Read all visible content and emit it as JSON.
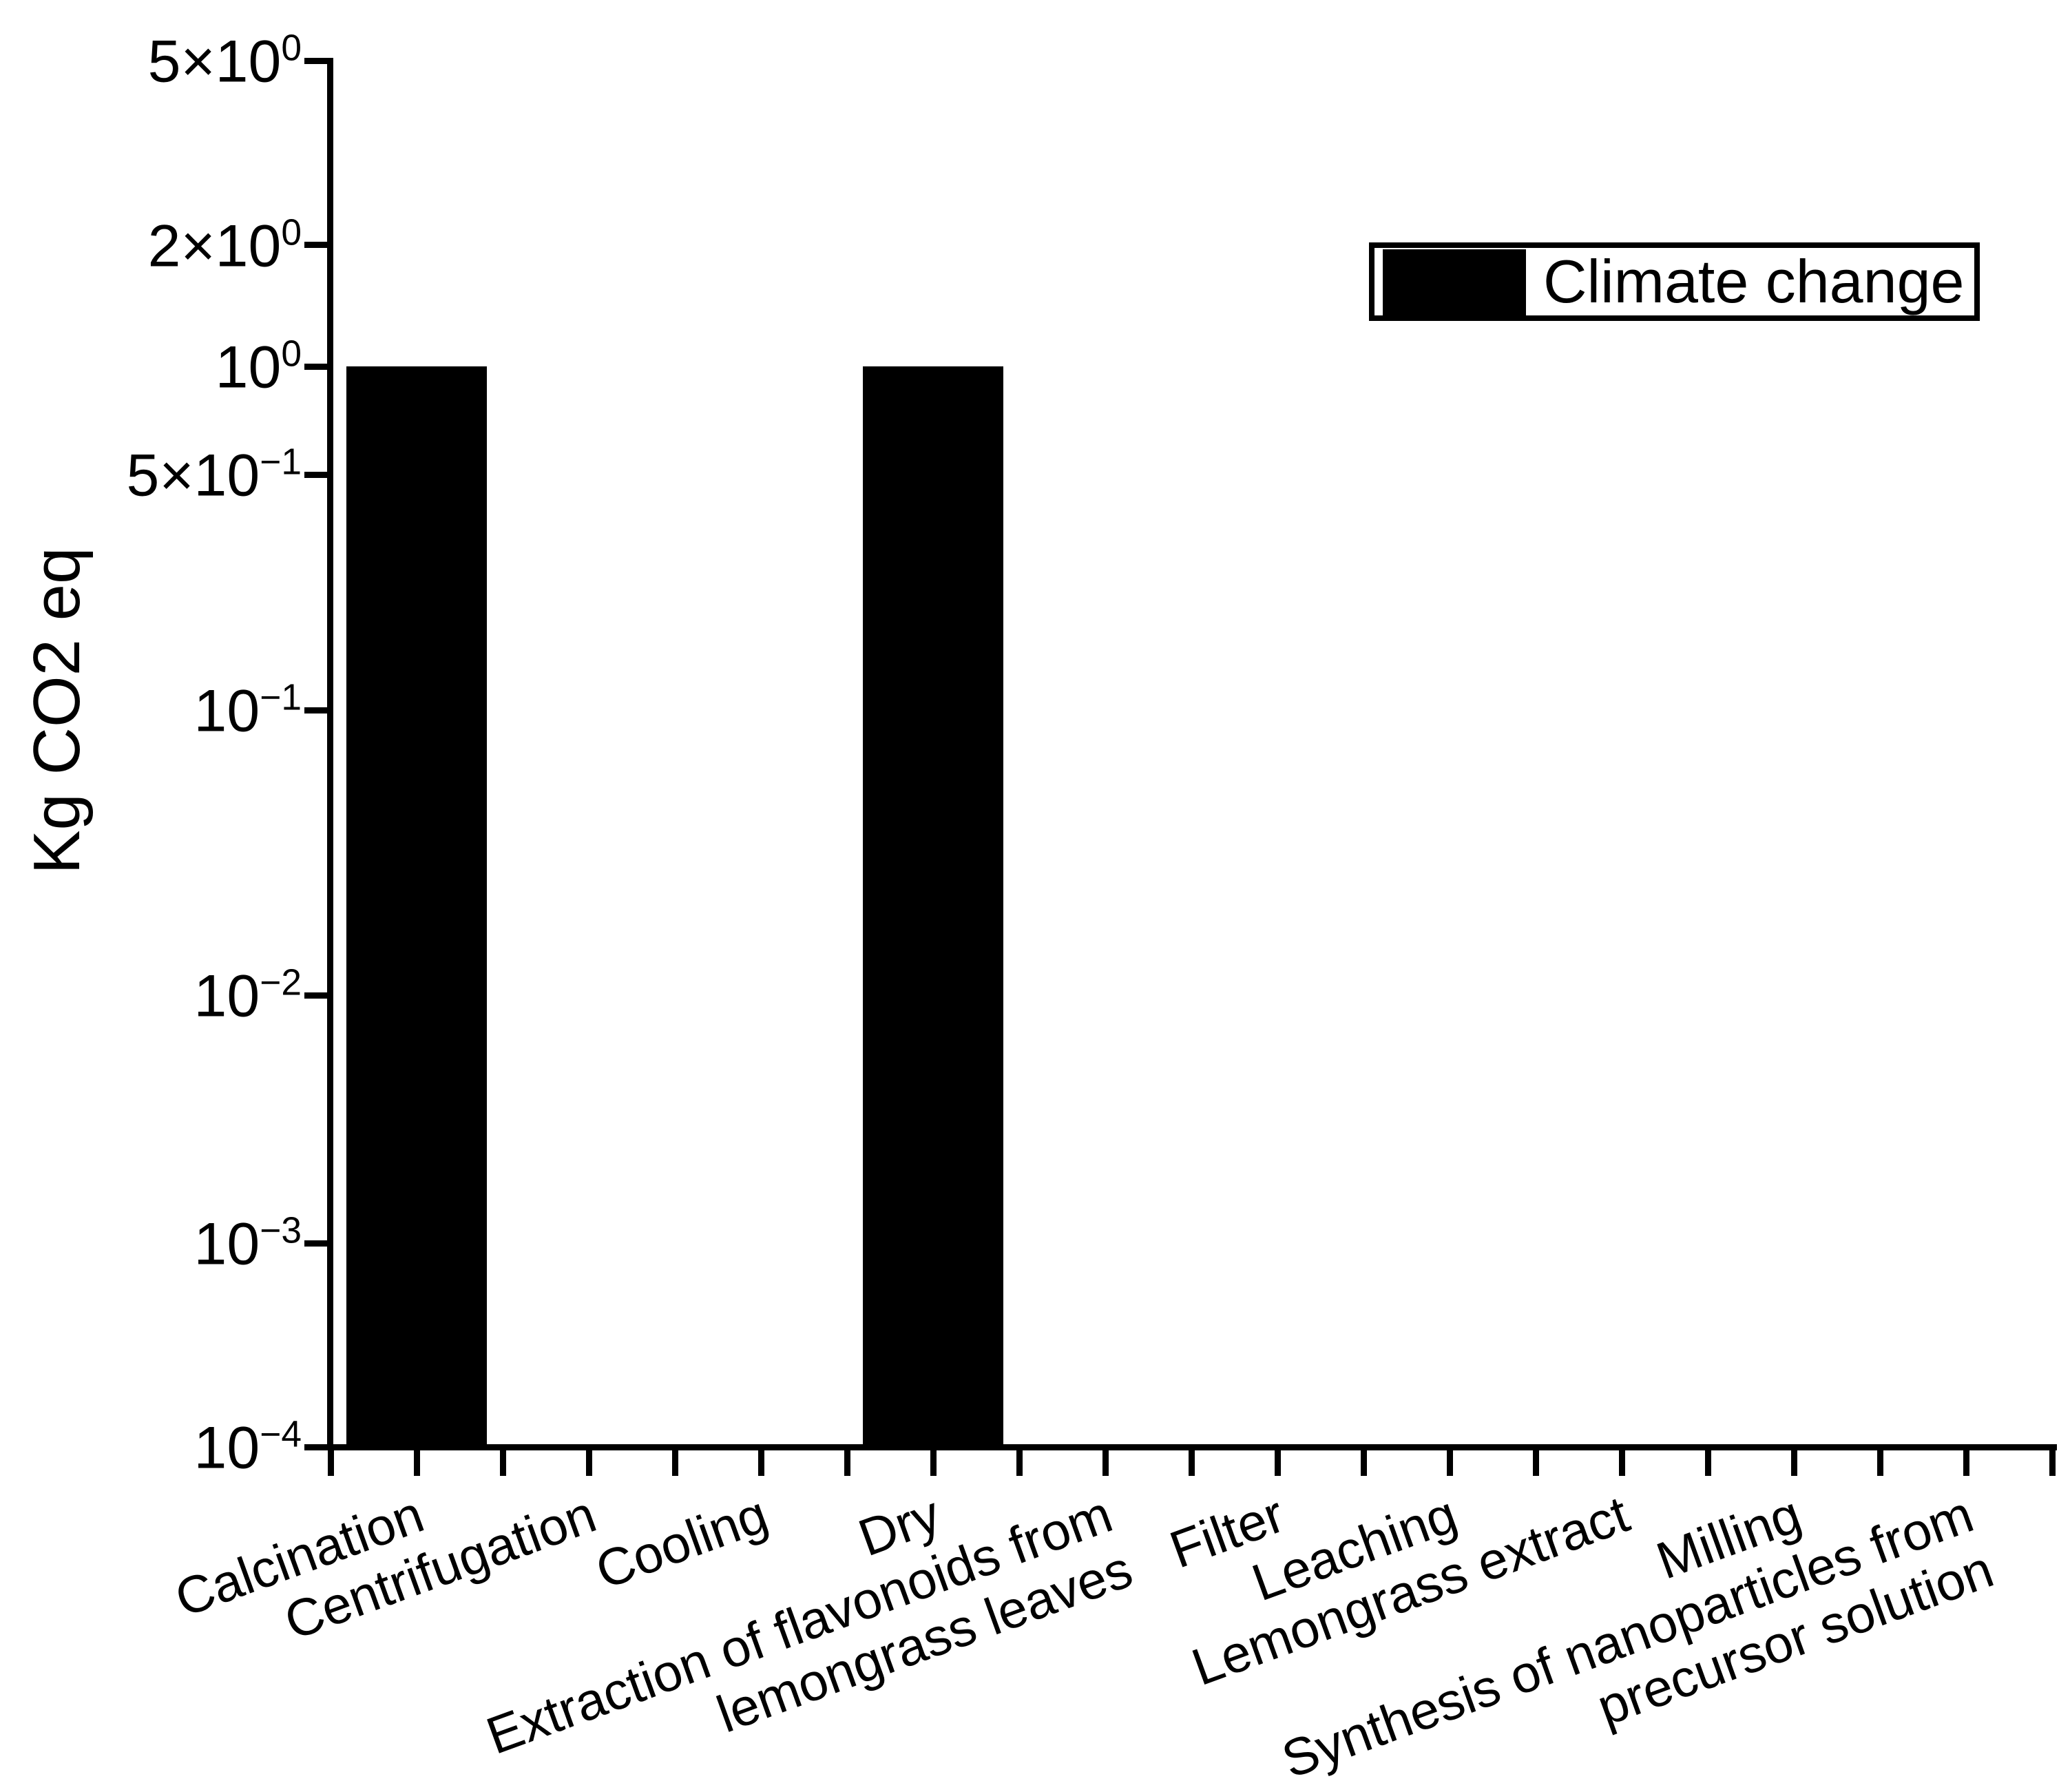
{
  "chart_data": {
    "type": "bar",
    "title": "",
    "xlabel": "",
    "ylabel": "Kg CO2 eq",
    "y_scale": "log-like, from 1e-4 (bottom) to 5 (top)",
    "ylim": [
      0.0001,
      5
    ],
    "grid": false,
    "background_color": "#ffffff",
    "bar_color": "#000000",
    "axis_color": "#000000",
    "legend_position": "top-right",
    "categories": [
      "Calcination",
      "Centrifugation",
      "Cooling",
      "Dry",
      "Extraction of flavonoids from lemongrass leaves",
      "Filter",
      "Leaching",
      "Lemongrass extract",
      "Milling",
      "Synthesis of nanoparticles from precursor solution"
    ],
    "series": [
      {
        "name": "Climate change",
        "values": [
          1,
          null,
          null,
          1,
          null,
          null,
          null,
          null,
          null,
          null
        ]
      }
    ]
  },
  "y_axis": {
    "title": "Kg CO2 eq",
    "ticks": [
      {
        "base": "5×10",
        "exp": "0",
        "value": 5,
        "frac": 0.0
      },
      {
        "base": "2×10",
        "exp": "0",
        "value": 2,
        "frac": 0.1331
      },
      {
        "base": "10",
        "exp": "0",
        "value": 1,
        "frac": 0.2206
      },
      {
        "base": "5×10",
        "exp": "−1",
        "value": 0.5,
        "frac": 0.2986
      },
      {
        "base": "10",
        "exp": "−1",
        "value": 0.1,
        "frac": 0.4685
      },
      {
        "base": "10",
        "exp": "−2",
        "value": 0.01,
        "frac": 0.6742
      },
      {
        "base": "10",
        "exp": "−3",
        "value": 0.001,
        "frac": 0.853
      },
      {
        "base": "10",
        "exp": "−4",
        "value": 0.0001,
        "frac": 1.0
      }
    ]
  },
  "x_axis": {
    "label_lines": [
      [
        "Calcination"
      ],
      [
        "Centrifugation"
      ],
      [
        "Cooling"
      ],
      [
        "Dry"
      ],
      [
        "Extraction of flavonoids from",
        "lemongrass leaves"
      ],
      [
        "Filter"
      ],
      [
        "Leaching"
      ],
      [
        "Lemongrass extract"
      ],
      [
        "Milling"
      ],
      [
        "Synthesis of nanoparticles from",
        "precursor solution"
      ]
    ]
  },
  "bars": [
    {
      "category": "Calcination",
      "index": 0,
      "value": 1,
      "top_frac": 0.2206
    },
    {
      "category": "Dry",
      "index": 3,
      "value": 1,
      "top_frac": 0.2206
    }
  ],
  "legend": {
    "label": "Climate change",
    "swatch_color": "#000000"
  }
}
